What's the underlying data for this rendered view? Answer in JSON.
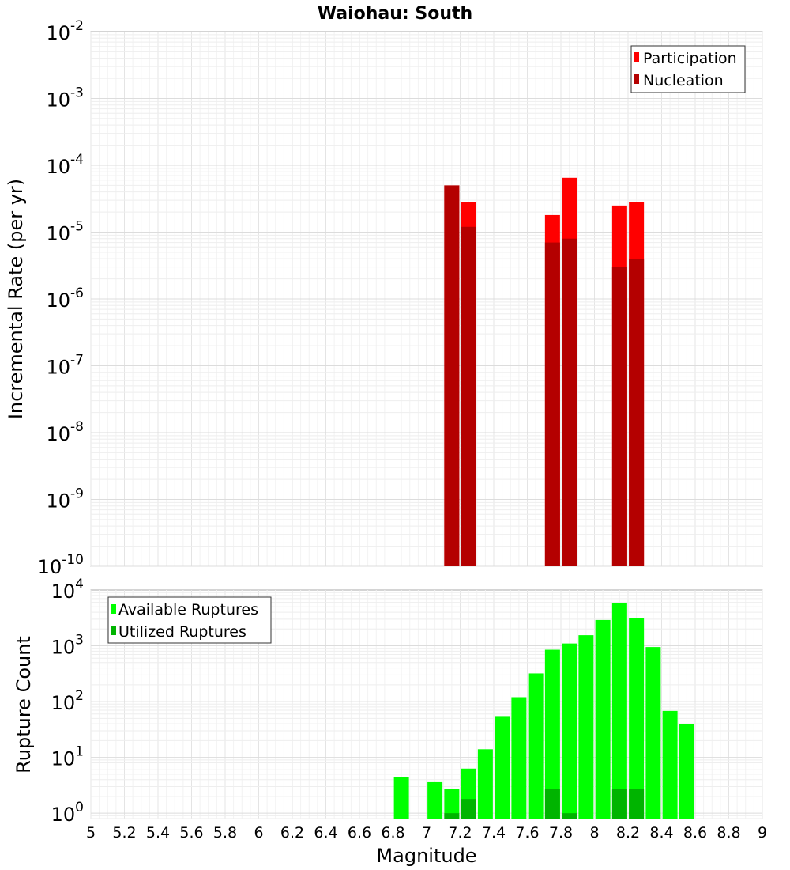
{
  "chart_data": [
    {
      "type": "bar",
      "title": "Waiohau: South",
      "ylabel": "Incremental Rate (per yr)",
      "xlabel": "",
      "yscale": "log",
      "ylim": [
        1e-10,
        0.01
      ],
      "xlim": [
        5,
        9
      ],
      "ytick_labels": [
        {
          "base": "10",
          "exp": "-10"
        },
        {
          "base": "10",
          "exp": "-9"
        },
        {
          "base": "10",
          "exp": "-8"
        },
        {
          "base": "10",
          "exp": "-7"
        },
        {
          "base": "10",
          "exp": "-6"
        },
        {
          "base": "10",
          "exp": "-5"
        },
        {
          "base": "10",
          "exp": "-4"
        },
        {
          "base": "10",
          "exp": "-3"
        },
        {
          "base": "10",
          "exp": "-2"
        }
      ],
      "legend_position": "top-right",
      "series": [
        {
          "name": "Participation",
          "color": "#ff0000",
          "x": [
            7.15,
            7.25,
            7.75,
            7.85,
            8.15,
            8.25
          ],
          "values": [
            5e-05,
            2.8e-05,
            1.8e-05,
            6.5e-05,
            2.5e-05,
            2.8e-05
          ]
        },
        {
          "name": "Nucleation",
          "color": "#b40000",
          "x": [
            7.15,
            7.25,
            7.75,
            7.85,
            8.15,
            8.25
          ],
          "values": [
            5e-05,
            1.2e-05,
            7e-06,
            8e-06,
            3e-06,
            4e-06
          ]
        }
      ]
    },
    {
      "type": "bar",
      "title": "",
      "ylabel": "Rupture Count",
      "xlabel": "Magnitude",
      "yscale": "log",
      "ylim": [
        0.8,
        10000
      ],
      "xlim": [
        5,
        9
      ],
      "ytick_labels": [
        {
          "base": "10",
          "exp": "0"
        },
        {
          "base": "10",
          "exp": "1"
        },
        {
          "base": "10",
          "exp": "2"
        },
        {
          "base": "10",
          "exp": "3"
        },
        {
          "base": "10",
          "exp": "4"
        }
      ],
      "xtick_labels": [
        "5",
        "5.2",
        "5.4",
        "5.6",
        "5.8",
        "6",
        "6.2",
        "6.4",
        "6.6",
        "6.8",
        "7",
        "7.2",
        "7.4",
        "7.6",
        "7.8",
        "8",
        "8.2",
        "8.4",
        "8.6",
        "8.8",
        "9"
      ],
      "legend_position": "top-left",
      "series": [
        {
          "name": "Available Ruptures",
          "color": "#00ff00",
          "x": [
            6.85,
            7.05,
            7.15,
            7.25,
            7.35,
            7.45,
            7.55,
            7.65,
            7.75,
            7.85,
            7.95,
            8.05,
            8.15,
            8.25,
            8.35,
            8.45,
            8.55
          ],
          "values": [
            4.5,
            3.6,
            2.7,
            6.3,
            14,
            55,
            120,
            320,
            850,
            1100,
            1550,
            2900,
            5800,
            3100,
            950,
            68,
            40
          ]
        },
        {
          "name": "Utilized Ruptures",
          "color": "#00b400",
          "x": [
            7.15,
            7.25,
            7.75,
            7.85,
            8.15,
            8.25
          ],
          "values": [
            1,
            1.8,
            2.7,
            1,
            2.7,
            2.7
          ]
        }
      ]
    }
  ]
}
